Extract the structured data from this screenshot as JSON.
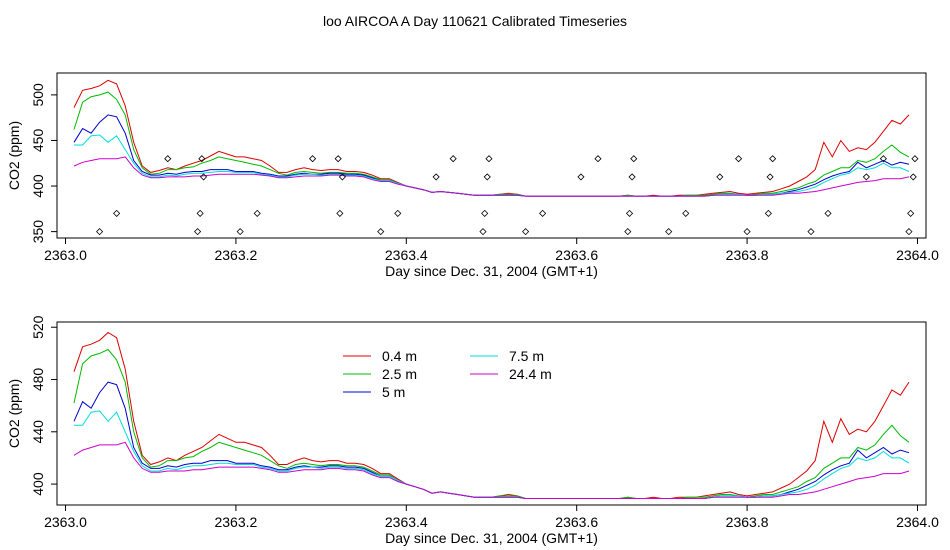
{
  "figure": {
    "title": "loo AIRCOA A  Day 110621  Calibrated Timeseries"
  },
  "chart_data": [
    {
      "type": "line",
      "xlabel": "Day since Dec. 31, 2004 (GMT+1)",
      "ylabel": "CO2 (ppm)",
      "xlim": [
        2362.99,
        2364.01
      ],
      "ylim": [
        343,
        524
      ],
      "xticks": [
        "2363.0",
        "2363.2",
        "2363.4",
        "2363.6",
        "2363.8",
        "2364.0"
      ],
      "yticks": [
        "350",
        "400",
        "450",
        "500"
      ],
      "x": [
        2363.01,
        2363.02,
        2363.03,
        2363.04,
        2363.05,
        2363.06,
        2363.07,
        2363.08,
        2363.09,
        2363.1,
        2363.11,
        2363.12,
        2363.13,
        2363.14,
        2363.15,
        2363.16,
        2363.17,
        2363.18,
        2363.19,
        2363.2,
        2363.21,
        2363.22,
        2363.23,
        2363.24,
        2363.25,
        2363.26,
        2363.27,
        2363.28,
        2363.29,
        2363.3,
        2363.31,
        2363.32,
        2363.33,
        2363.34,
        2363.35,
        2363.36,
        2363.37,
        2363.38,
        2363.39,
        2363.4,
        2363.41,
        2363.42,
        2363.43,
        2363.44,
        2363.45,
        2363.46,
        2363.47,
        2363.48,
        2363.49,
        2363.5,
        2363.51,
        2363.52,
        2363.53,
        2363.54,
        2363.55,
        2363.56,
        2363.57,
        2363.58,
        2363.59,
        2363.6,
        2363.61,
        2363.62,
        2363.63,
        2363.64,
        2363.65,
        2363.66,
        2363.67,
        2363.68,
        2363.69,
        2363.7,
        2363.71,
        2363.72,
        2363.73,
        2363.74,
        2363.75,
        2363.76,
        2363.77,
        2363.78,
        2363.79,
        2363.8,
        2363.81,
        2363.82,
        2363.83,
        2363.84,
        2363.85,
        2363.86,
        2363.87,
        2363.88,
        2363.89,
        2363.9,
        2363.91,
        2363.92,
        2363.93,
        2363.94,
        2363.95,
        2363.96,
        2363.97,
        2363.98,
        2363.99
      ],
      "series": [
        {
          "name": "0.4 m",
          "color": "#dd0000",
          "values": [
            486,
            505,
            507,
            510,
            516,
            512,
            488,
            448,
            422,
            415,
            417,
            420,
            418,
            422,
            425,
            428,
            433,
            438,
            435,
            432,
            432,
            430,
            428,
            422,
            415,
            415,
            418,
            420,
            418,
            417,
            418,
            418,
            416,
            416,
            415,
            412,
            408,
            408,
            404,
            400,
            398,
            396,
            393,
            394,
            393,
            392,
            391,
            390,
            390,
            390,
            391,
            392,
            391,
            389,
            389,
            389,
            389,
            389,
            389,
            389,
            389,
            389,
            389,
            389,
            389,
            390,
            389,
            389,
            390,
            389,
            389,
            390,
            390,
            390,
            391,
            392,
            393,
            394,
            392,
            391,
            392,
            393,
            394,
            397,
            400,
            405,
            410,
            418,
            448,
            432,
            450,
            438,
            442,
            440,
            448,
            460,
            472,
            468,
            478
          ]
        },
        {
          "name": "2.5 m",
          "color": "#00bb00",
          "values": [
            462,
            492,
            498,
            500,
            503,
            495,
            478,
            440,
            420,
            413,
            414,
            418,
            418,
            420,
            421,
            425,
            428,
            432,
            430,
            428,
            426,
            424,
            422,
            418,
            414,
            412,
            415,
            416,
            415,
            414,
            415,
            415,
            414,
            414,
            413,
            410,
            407,
            407,
            403,
            400,
            398,
            396,
            393,
            394,
            393,
            392,
            391,
            390,
            390,
            390,
            391,
            391,
            391,
            389,
            389,
            389,
            389,
            389,
            389,
            389,
            389,
            389,
            389,
            389,
            389,
            390,
            389,
            389,
            389,
            389,
            389,
            389,
            390,
            390,
            390,
            391,
            392,
            392,
            391,
            390,
            391,
            392,
            392,
            394,
            396,
            398,
            402,
            405,
            412,
            416,
            420,
            420,
            428,
            426,
            430,
            438,
            445,
            437,
            432
          ]
        },
        {
          "name": "5 m",
          "color": "#0000cc",
          "values": [
            448,
            463,
            458,
            470,
            478,
            476,
            458,
            428,
            416,
            412,
            412,
            414,
            413,
            415,
            416,
            416,
            418,
            418,
            418,
            416,
            416,
            416,
            414,
            413,
            411,
            411,
            413,
            414,
            413,
            413,
            414,
            414,
            413,
            413,
            412,
            409,
            406,
            406,
            403,
            400,
            398,
            396,
            393,
            394,
            393,
            392,
            391,
            390,
            390,
            390,
            390,
            390,
            390,
            389,
            389,
            389,
            389,
            389,
            389,
            389,
            389,
            389,
            389,
            389,
            389,
            389,
            389,
            389,
            389,
            389,
            389,
            389,
            389,
            389,
            389,
            390,
            391,
            391,
            391,
            390,
            390,
            391,
            391,
            392,
            394,
            396,
            399,
            402,
            407,
            411,
            414,
            416,
            426,
            420,
            424,
            428,
            423,
            426,
            424
          ]
        },
        {
          "name": "7.5 m",
          "color": "#00dddd",
          "values": [
            445,
            445,
            455,
            456,
            448,
            455,
            440,
            425,
            414,
            410,
            410,
            412,
            411,
            413,
            414,
            414,
            415,
            416,
            416,
            415,
            415,
            415,
            413,
            412,
            410,
            410,
            412,
            413,
            413,
            412,
            413,
            413,
            412,
            412,
            411,
            408,
            406,
            406,
            403,
            400,
            398,
            396,
            393,
            394,
            393,
            392,
            391,
            390,
            390,
            390,
            390,
            390,
            390,
            389,
            389,
            389,
            389,
            389,
            389,
            389,
            389,
            389,
            389,
            389,
            389,
            389,
            389,
            389,
            389,
            389,
            389,
            389,
            389,
            389,
            389,
            390,
            391,
            391,
            391,
            390,
            390,
            391,
            391,
            392,
            393,
            394,
            396,
            399,
            404,
            408,
            412,
            414,
            420,
            418,
            420,
            425,
            420,
            420,
            416
          ]
        },
        {
          "name": "24.4 m",
          "color": "#cc00cc",
          "values": [
            422,
            426,
            428,
            430,
            430,
            430,
            432,
            420,
            412,
            409,
            409,
            410,
            410,
            410,
            411,
            411,
            412,
            413,
            413,
            413,
            413,
            413,
            412,
            411,
            409,
            409,
            410,
            411,
            411,
            411,
            412,
            412,
            411,
            411,
            410,
            407,
            405,
            405,
            402,
            400,
            398,
            396,
            393,
            394,
            393,
            392,
            391,
            390,
            390,
            390,
            390,
            390,
            390,
            389,
            389,
            389,
            389,
            389,
            389,
            389,
            389,
            389,
            389,
            389,
            389,
            389,
            389,
            389,
            389,
            389,
            389,
            389,
            389,
            389,
            389,
            390,
            390,
            390,
            390,
            390,
            390,
            390,
            390,
            391,
            392,
            392,
            393,
            394,
            396,
            398,
            400,
            402,
            404,
            405,
            406,
            408,
            408,
            408,
            410
          ]
        }
      ],
      "markers": {
        "x": [
          2363.04,
          2363.06,
          2363.12,
          2363.155,
          2363.16,
          2363.158,
          2363.162,
          2363.205,
          2363.225,
          2363.29,
          2363.32,
          2363.322,
          2363.325,
          2363.37,
          2363.39,
          2363.435,
          2363.455,
          2363.49,
          2363.492,
          2363.495,
          2363.497,
          2363.54,
          2363.56,
          2363.605,
          2363.625,
          2363.66,
          2363.662,
          2363.665,
          2363.667,
          2363.708,
          2363.728,
          2363.768,
          2363.79,
          2363.8,
          2363.825,
          2363.827,
          2363.83,
          2363.875,
          2363.895,
          2363.94,
          2363.96,
          2363.99,
          2363.992,
          2363.995,
          2363.997
        ],
        "y": [
          350,
          370,
          430,
          350,
          430,
          370,
          410,
          350,
          370,
          430,
          430,
          370,
          410,
          350,
          370,
          410,
          430,
          350,
          370,
          410,
          430,
          350,
          370,
          410,
          430,
          350,
          370,
          410,
          430,
          350,
          370,
          410,
          430,
          350,
          370,
          410,
          430,
          350,
          370,
          410,
          430,
          350,
          370,
          410,
          430
        ]
      }
    },
    {
      "type": "line",
      "xlabel": "Day since Dec. 31, 2004 (GMT+1)",
      "ylabel": "CO2 (ppm)",
      "xlim": [
        2362.99,
        2364.01
      ],
      "ylim": [
        384,
        524
      ],
      "xticks": [
        "2363.0",
        "2363.2",
        "2363.4",
        "2363.6",
        "2363.8",
        "2364.0"
      ],
      "yticks": [
        "400",
        "440",
        "480",
        "520"
      ],
      "legend_position": "top-center",
      "series_ref": "same as chart 1"
    }
  ]
}
